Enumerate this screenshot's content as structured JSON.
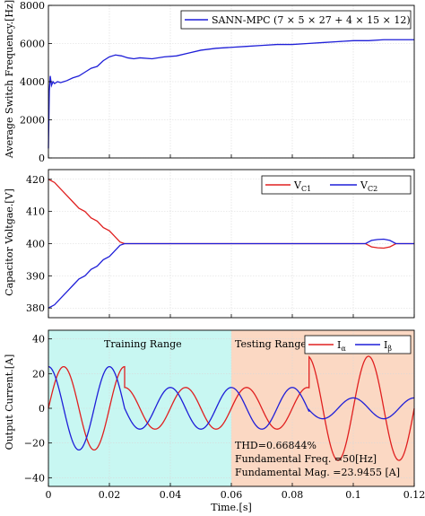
{
  "colors": {
    "blue": "#1f1fd8",
    "red": "#e02020",
    "training_bg": "#c8f7f2",
    "testing_bg": "#fbd8c3",
    "grid": "#d8d8d8"
  },
  "chart_data": [
    {
      "type": "line",
      "ylabel": "Average Switch Frequency.[Hz]",
      "xlim": [
        0,
        0.12
      ],
      "ylim": [
        0,
        8000
      ],
      "xticks": [
        0,
        0.02,
        0.04,
        0.06,
        0.08,
        0.1,
        0.12
      ],
      "yticks": [
        0,
        2000,
        4000,
        6000,
        8000
      ],
      "xtick_labels": [
        "",
        "",
        "",
        "",
        "",
        "",
        ""
      ],
      "ytick_labels": [
        "0",
        "2000",
        "4000",
        "6000",
        "8000"
      ],
      "grid": true,
      "legend_position": "top-right",
      "series": [
        {
          "name": "SANN-MPC (7 × 5 × 27 + 4 × 15 × 12)",
          "color": "blue",
          "x": [
            0,
            0.0003,
            0.0006,
            0.001,
            0.0015,
            0.002,
            0.003,
            0.004,
            0.005,
            0.006,
            0.008,
            0.01,
            0.012,
            0.014,
            0.016,
            0.018,
            0.02,
            0.022,
            0.024,
            0.026,
            0.028,
            0.03,
            0.034,
            0.038,
            0.042,
            0.046,
            0.05,
            0.055,
            0.06,
            0.065,
            0.07,
            0.075,
            0.08,
            0.085,
            0.09,
            0.095,
            0.1,
            0.105,
            0.11,
            0.115,
            0.12
          ],
          "y": [
            500,
            3500,
            4300,
            3800,
            4000,
            3900,
            4000,
            3950,
            4000,
            4050,
            4200,
            4300,
            4500,
            4700,
            4800,
            5100,
            5300,
            5400,
            5350,
            5250,
            5200,
            5250,
            5200,
            5300,
            5350,
            5500,
            5650,
            5750,
            5800,
            5850,
            5900,
            5950,
            5950,
            6000,
            6050,
            6100,
            6150,
            6150,
            6200,
            6200,
            6200
          ]
        }
      ]
    },
    {
      "type": "line",
      "ylabel": "Capacitor Voltgae.[V]",
      "xlim": [
        0,
        0.12
      ],
      "ylim": [
        377,
        423
      ],
      "xticks": [
        0,
        0.02,
        0.04,
        0.06,
        0.08,
        0.1,
        0.12
      ],
      "yticks": [
        380,
        390,
        400,
        410,
        420
      ],
      "xtick_labels": [
        "",
        "",
        "",
        "",
        "",
        "",
        ""
      ],
      "ytick_labels": [
        "380",
        "390",
        "400",
        "410",
        "420"
      ],
      "grid": true,
      "legend_position": "top-right",
      "series": [
        {
          "name": "VC1",
          "name_main": "V",
          "name_sub": "C1",
          "color": "red",
          "x": [
            0,
            0.002,
            0.004,
            0.006,
            0.008,
            0.01,
            0.012,
            0.014,
            0.016,
            0.018,
            0.02,
            0.022,
            0.0235,
            0.025,
            0.03,
            0.04,
            0.05,
            0.06,
            0.07,
            0.08,
            0.09,
            0.1,
            0.104,
            0.106,
            0.108,
            0.11,
            0.112,
            0.114,
            0.12
          ],
          "y": [
            420,
            419,
            417,
            415,
            413,
            411,
            410,
            408,
            407,
            405,
            404,
            402,
            400.5,
            400,
            400,
            400,
            400,
            400,
            400,
            400,
            400,
            400,
            400,
            399,
            398.7,
            398.6,
            399,
            400,
            400
          ]
        },
        {
          "name": "VC2",
          "name_main": "V",
          "name_sub": "C2",
          "color": "blue",
          "x": [
            0,
            0.002,
            0.004,
            0.006,
            0.008,
            0.01,
            0.012,
            0.014,
            0.016,
            0.018,
            0.02,
            0.022,
            0.0235,
            0.025,
            0.03,
            0.04,
            0.05,
            0.06,
            0.07,
            0.08,
            0.09,
            0.1,
            0.104,
            0.106,
            0.108,
            0.11,
            0.112,
            0.114,
            0.12
          ],
          "y": [
            380,
            381,
            383,
            385,
            387,
            389,
            390,
            392,
            393,
            395,
            396,
            398,
            399.5,
            400,
            400,
            400,
            400,
            400,
            400,
            400,
            400,
            400,
            400,
            401,
            401.3,
            401.4,
            401,
            400,
            400
          ]
        }
      ]
    },
    {
      "type": "line",
      "ylabel": "Output Current.[A]",
      "xlabel": "Time.[s]",
      "xlim": [
        0,
        0.12
      ],
      "ylim": [
        -45,
        45
      ],
      "xticks": [
        0,
        0.02,
        0.04,
        0.06,
        0.08,
        0.1,
        0.12
      ],
      "yticks": [
        -40,
        -20,
        0,
        20,
        40
      ],
      "xtick_labels": [
        "0",
        "0.02",
        "0.04",
        "0.06",
        "0.08",
        "0.1",
        "0.12"
      ],
      "ytick_labels": [
        "−40",
        "−20",
        "0",
        "20",
        "40"
      ],
      "grid": true,
      "legend_position": "top-right",
      "regions": [
        {
          "label": "Training Range",
          "x": [
            0,
            0.06
          ],
          "color": "training_bg"
        },
        {
          "label": "Testing Range",
          "x": [
            0.06,
            0.12
          ],
          "color": "testing_bg"
        }
      ],
      "annotations": [
        "THD=0.66844%",
        "Fundamental Freq. =50[Hz]",
        "Fundamental Mag. =23.9455 [A]"
      ],
      "series": [
        {
          "name": "Iα",
          "name_main": "I",
          "name_sub": "α",
          "color": "red",
          "amplitude_segments": [
            {
              "x": [
                0,
                0.025
              ],
              "amplitude": 24,
              "freq_hz": 50,
              "phase_deg": 0
            },
            {
              "x": [
                0.025,
                0.0855
              ],
              "amplitude": 12,
              "freq_hz": 50,
              "phase_deg": 0
            },
            {
              "x": [
                0.0855,
                0.12
              ],
              "amplitude": 30,
              "freq_hz": 50,
              "phase_deg": 0
            }
          ]
        },
        {
          "name": "Iβ",
          "name_main": "I",
          "name_sub": "β",
          "color": "blue",
          "amplitude_segments": [
            {
              "x": [
                0,
                0.025
              ],
              "amplitude": 24,
              "freq_hz": 50,
              "phase_deg": 90
            },
            {
              "x": [
                0.025,
                0.0855
              ],
              "amplitude": 12,
              "freq_hz": 50,
              "phase_deg": 90
            },
            {
              "x": [
                0.0855,
                0.12
              ],
              "amplitude": 6,
              "freq_hz": 50,
              "phase_deg": 90
            }
          ]
        }
      ]
    }
  ]
}
